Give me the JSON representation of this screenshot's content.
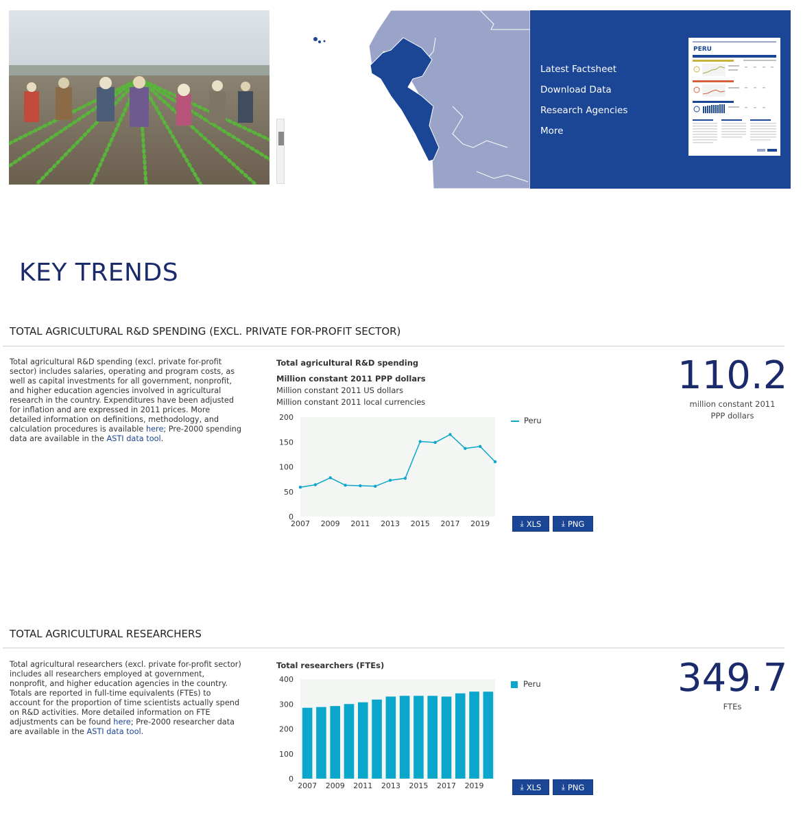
{
  "hero": {
    "panel_links": [
      "Latest Factsheet",
      "Download Data",
      "Research Agencies",
      "More"
    ],
    "factsheet": {
      "country": "PERU"
    },
    "colors": {
      "panel": "#1b4595",
      "highlight_country": "#1b4595",
      "map_land": "#9aa3c8"
    }
  },
  "key_trends": {
    "title": "KEY TRENDS"
  },
  "spending": {
    "section_title": "TOTAL AGRICULTURAL R&D SPENDING (EXCL. PRIVATE FOR-PROFIT SECTOR)",
    "desc_main": "Total agricultural R&D spending (excl. private for-profit sector) includes salaries, operating and program costs, as well as capital investments for all government, nonprofit, and higher education agencies involved in agricultural research in the country. Expenditures have been adjusted for inflation and are expressed in 2011 prices. More detailed information on definitions, methodology, and calculation procedures is available ",
    "link_here": "here",
    "desc_mid": "; Pre-2000 spending data are available in the ",
    "link_tool": "ASTI data tool",
    "desc_end": ".",
    "chart_title": "Total agricultural R&D spending",
    "unit_options": [
      "Million constant 2011 PPP dollars",
      "Million constant 2011 US dollars",
      "Million constant 2011 local currencies"
    ],
    "selected_unit": "Million constant 2011 PPP dollars",
    "headline_value": "110.2",
    "headline_unit": "million constant 2011 PPP dollars",
    "btn_xls": "XLS",
    "btn_png": "PNG"
  },
  "researchers": {
    "section_title": "TOTAL AGRICULTURAL RESEARCHERS",
    "desc_main": "Total agricultural researchers (excl. private for-profit sector) includes all researchers employed at government, nonprofit, and higher education agencies in the country. Totals are reported in full-time equivalents (FTEs) to account for the proportion of time scientists actually spend on R&D activities. More detailed information on FTE adjustments can be found ",
    "link_here": "here",
    "desc_mid": "; Pre-2000 researcher data are available in the ",
    "link_tool": "ASTI data tool",
    "desc_end": ".",
    "chart_title": "Total researchers (FTEs)",
    "headline_value": "349.7",
    "headline_unit": "FTEs",
    "btn_xls": "XLS",
    "btn_png": "PNG"
  },
  "chart_data": [
    {
      "type": "line",
      "title": "Total agricultural R&D spending",
      "ylabel": "Million constant 2011 PPP dollars",
      "x": [
        2007,
        2008,
        2009,
        2010,
        2011,
        2012,
        2013,
        2014,
        2015,
        2016,
        2017,
        2018,
        2019,
        2020
      ],
      "series": [
        {
          "name": "Peru",
          "values": [
            59,
            64,
            78,
            63,
            62,
            61,
            73,
            77,
            151,
            149,
            165,
            137,
            141,
            110.2
          ]
        }
      ],
      "xticks": [
        "2007",
        "2009",
        "2011",
        "2013",
        "2015",
        "2017",
        "2019"
      ],
      "yticks": [
        0,
        50,
        100,
        150,
        200
      ],
      "ylim": [
        0,
        200
      ],
      "grid": false,
      "legend": "right",
      "color": "#0aa6cc"
    },
    {
      "type": "bar",
      "title": "Total researchers (FTEs)",
      "ylabel": "",
      "categories": [
        "2007",
        "2008",
        "2009",
        "2010",
        "2011",
        "2012",
        "2013",
        "2014",
        "2015",
        "2016",
        "2017",
        "2018",
        "2019",
        "2020"
      ],
      "series": [
        {
          "name": "Peru",
          "values": [
            285,
            288,
            292,
            300,
            307,
            318,
            330,
            333,
            333,
            333,
            330,
            343,
            350,
            349.7
          ]
        }
      ],
      "xticks": [
        "2007",
        "2009",
        "2011",
        "2013",
        "2015",
        "2017",
        "2019"
      ],
      "yticks": [
        0,
        100,
        200,
        300,
        400
      ],
      "ylim": [
        0,
        400
      ],
      "grid": false,
      "legend": "right",
      "color": "#0aa6cc"
    }
  ]
}
